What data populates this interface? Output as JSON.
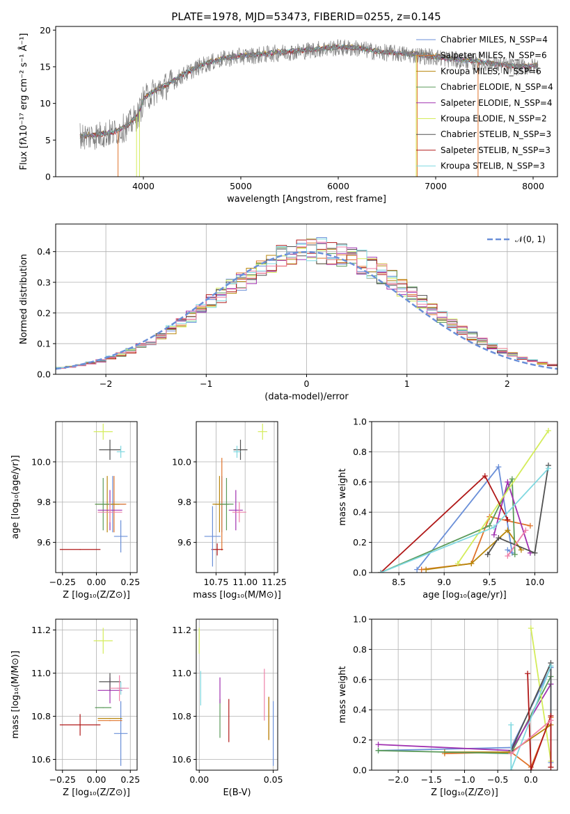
{
  "title": "PLATE=1978, MJD=53473, FIBERID=0255, z=0.145",
  "colors": {
    "Chabrier MILES": "#6a8fd8",
    "Salpeter MILES": "#e0732a",
    "Kroupa MILES": "#b8860b",
    "Chabrier ELODIE": "#5a9a5a",
    "Salpeter ELODIE": "#a030b0",
    "Kroupa ELODIE": "#d4ec5a",
    "Chabrier STELIB": "#505050",
    "Salpeter STELIB": "#b01818",
    "Kroupa STELIB": "#7fd8e0",
    "Pink": "#ee80a8",
    "Gray": "#7f7f7f"
  },
  "chart_data": [
    {
      "type": "line",
      "xlabel": "wavelength [Angstrom, rest frame]",
      "ylabel": "Flux [fλ10⁻¹⁷ erg cm⁻² s⁻¹ Å⁻¹]",
      "xlim": [
        3100,
        8250
      ],
      "ylim": [
        0,
        20.5
      ],
      "xticks": [
        "4000",
        "5000",
        "6000",
        "7000",
        "8000"
      ],
      "yticks": [
        "0",
        "5",
        "10",
        "15",
        "20"
      ],
      "grid": false,
      "legend_position": "top-right",
      "legend": [
        "Chabrier MILES, N_SSP=4",
        "Salpeter MILES, N_SSP=6",
        "Kroupa MILES, N_SSP=6",
        "Chabrier ELODIE, N_SSP=4",
        "Salpeter ELODIE, N_SSP=4",
        "Kroupa ELODIE, N_SSP=2",
        "Chabrier STELIB, N_SSP=3",
        "Salpeter STELIB, N_SSP=3",
        "Kroupa STELIB, N_SSP=3"
      ],
      "continuum": {
        "x": [
          3350,
          3500,
          3700,
          3850,
          3950,
          4000,
          4100,
          4250,
          4400,
          4600,
          4800,
          5000,
          5200,
          5400,
          5600,
          5800,
          6000,
          6200,
          6400,
          6600,
          6800,
          7000,
          7200,
          7400,
          7600,
          7800,
          8000
        ],
        "y": [
          5.5,
          5.6,
          6.0,
          7.0,
          8.5,
          10.5,
          11.5,
          12.5,
          13.8,
          15.2,
          16.0,
          16.4,
          16.6,
          16.9,
          17.1,
          17.4,
          17.6,
          17.5,
          17.0,
          16.8,
          16.6,
          16.3,
          15.9,
          15.7,
          15.3,
          15.0,
          15.0
        ]
      },
      "dropouts": [
        {
          "x": 3930,
          "color": "Kroupa ELODIE"
        },
        {
          "x": 3960,
          "color": "Kroupa ELODIE"
        },
        {
          "x": 6800,
          "color": "Kroupa ELODIE"
        },
        {
          "x": 6810,
          "color": "Salpeter MILES"
        },
        {
          "x": 7435,
          "color": "Salpeter MILES"
        },
        {
          "x": 3740,
          "color": "Salpeter MILES"
        }
      ]
    },
    {
      "type": "line",
      "xlabel": "(data-model)/error",
      "ylabel": "Normed distribution",
      "xlim": [
        -2.5,
        2.5
      ],
      "ylim": [
        0,
        0.49
      ],
      "xticks": [
        "−2",
        "−1",
        "0",
        "1",
        "2"
      ],
      "yticks": [
        "0.0",
        "0.1",
        "0.2",
        "0.3",
        "0.4"
      ],
      "grid": true,
      "legend_position": "top-right",
      "legend": [
        "𝒩(0, 1)"
      ],
      "hist_bins": {
        "start": -2.5,
        "width": 0.1,
        "count": 50
      }
    },
    {
      "type": "scatter",
      "xlabel": "Z [log₁₀(Z/Z⊙)]",
      "ylabel": "age  [log₁₀(age/yr)]",
      "xlim": [
        -0.3,
        0.3
      ],
      "ylim": [
        9.45,
        10.2
      ],
      "xticks": [
        "−0.25",
        "0.00",
        "0.25"
      ],
      "yticks": [
        "9.6",
        "9.8",
        "10.0"
      ],
      "grid": true,
      "points": [
        {
          "x": 0.12,
          "y": 9.79,
          "ex": 0.09,
          "ey": 0.14,
          "c": "Chabrier MILES"
        },
        {
          "x": 0.13,
          "y": 9.79,
          "ex": 0.09,
          "ey": 0.14,
          "c": "Salpeter MILES"
        },
        {
          "x": 0.08,
          "y": 9.79,
          "ex": 0.09,
          "ey": 0.14,
          "c": "Kroupa MILES"
        },
        {
          "x": 0.05,
          "y": 9.79,
          "ex": 0.06,
          "ey": 0.13,
          "c": "Chabrier ELODIE"
        },
        {
          "x": 0.1,
          "y": 9.76,
          "ex": 0.09,
          "ey": 0.1,
          "c": "Salpeter ELODIE"
        },
        {
          "x": 0.05,
          "y": 10.15,
          "ex": 0.07,
          "ey": 0.04,
          "c": "Kroupa ELODIE"
        },
        {
          "x": 0.1,
          "y": 10.06,
          "ex": 0.08,
          "ey": 0.05,
          "c": "Chabrier STELIB"
        },
        {
          "x": -0.12,
          "y": 9.565,
          "ex": 0.15,
          "ey": 0.0,
          "c": "Salpeter STELIB"
        },
        {
          "x": 0.18,
          "y": 10.05,
          "ex": 0.03,
          "ey": 0.03,
          "c": "Kroupa STELIB"
        },
        {
          "x": 0.18,
          "y": 9.63,
          "ex": 0.05,
          "ey": 0.08,
          "c": "Chabrier MILES"
        },
        {
          "x": 0.1,
          "y": 9.75,
          "ex": 0.09,
          "ey": 0.05,
          "c": "Pink"
        }
      ]
    },
    {
      "type": "scatter",
      "xlabel": "mass [log₁₀(M/M⊙)]",
      "ylabel": "",
      "xlim": [
        10.58,
        11.28
      ],
      "ylim": [
        9.45,
        10.2
      ],
      "xticks": [
        "10.75",
        "11.00",
        "11.25"
      ],
      "yticks": [
        "9.6",
        "9.8",
        "10.0"
      ],
      "grid": true,
      "points": [
        {
          "x": 10.8,
          "y": 9.79,
          "ex": 0.06,
          "ey": 0.14,
          "c": "Chabrier MILES"
        },
        {
          "x": 10.8,
          "y": 9.79,
          "ex": 0.06,
          "ey": 0.23,
          "c": "Salpeter MILES"
        },
        {
          "x": 10.78,
          "y": 9.79,
          "ex": 0.06,
          "ey": 0.14,
          "c": "Kroupa MILES"
        },
        {
          "x": 10.84,
          "y": 9.79,
          "ex": 0.06,
          "ey": 0.13,
          "c": "Chabrier ELODIE"
        },
        {
          "x": 10.92,
          "y": 9.76,
          "ex": 0.06,
          "ey": 0.1,
          "c": "Salpeter ELODIE"
        },
        {
          "x": 11.15,
          "y": 10.15,
          "ex": 0.04,
          "ey": 0.04,
          "c": "Kroupa ELODIE"
        },
        {
          "x": 10.96,
          "y": 10.06,
          "ex": 0.06,
          "ey": 0.05,
          "c": "Chabrier STELIB"
        },
        {
          "x": 10.76,
          "y": 9.565,
          "ex": 0.05,
          "ey": 0.03,
          "c": "Salpeter STELIB"
        },
        {
          "x": 10.93,
          "y": 10.05,
          "ex": 0.03,
          "ey": 0.03,
          "c": "Kroupa STELIB"
        },
        {
          "x": 10.72,
          "y": 9.63,
          "ex": 0.07,
          "ey": 0.15,
          "c": "Chabrier MILES"
        },
        {
          "x": 10.95,
          "y": 9.75,
          "ex": 0.06,
          "ey": 0.05,
          "c": "Pink"
        }
      ]
    },
    {
      "type": "line",
      "xlabel": "age  [log₁₀(age/yr)]",
      "ylabel": "mass weight",
      "xlim": [
        8.2,
        10.25
      ],
      "ylim": [
        0,
        1.0
      ],
      "xticks": [
        "8.5",
        "9.0",
        "9.5",
        "10.0"
      ],
      "yticks": [
        "0.0",
        "0.2",
        "0.4",
        "0.6",
        "0.8",
        "1.0"
      ],
      "grid": true,
      "series": [
        {
          "c": "Chabrier MILES",
          "x": [
            8.7,
            9.6,
            9.75,
            9.7
          ],
          "y": [
            0.02,
            0.7,
            0.13,
            0.15
          ]
        },
        {
          "c": "Salpeter MILES",
          "x": [
            8.75,
            9.3,
            9.5,
            9.95
          ],
          "y": [
            0.02,
            0.06,
            0.37,
            0.31
          ]
        },
        {
          "c": "Kroupa MILES",
          "x": [
            8.8,
            9.3,
            9.7,
            9.85
          ],
          "y": [
            0.02,
            0.06,
            0.28,
            0.15
          ]
        },
        {
          "c": "Chabrier ELODIE",
          "x": [
            8.3,
            9.5,
            9.75,
            9.78
          ],
          "y": [
            0.0,
            0.31,
            0.62,
            0.12
          ]
        },
        {
          "c": "Salpeter ELODIE",
          "x": [
            9.55,
            9.7,
            9.95
          ],
          "y": [
            0.25,
            0.6,
            0.13
          ]
        },
        {
          "c": "Kroupa ELODIE",
          "x": [
            9.15,
            10.15
          ],
          "y": [
            0.06,
            0.94
          ]
        },
        {
          "c": "Chabrier STELIB",
          "x": [
            9.48,
            9.6,
            10.0,
            10.15
          ],
          "y": [
            0.12,
            0.23,
            0.13,
            0.71
          ]
        },
        {
          "c": "Salpeter STELIB",
          "x": [
            8.3,
            9.45,
            9.7
          ],
          "y": [
            0.0,
            0.64,
            0.35
          ]
        },
        {
          "c": "Kroupa STELIB",
          "x": [
            8.3,
            9.55,
            10.15
          ],
          "y": [
            0.0,
            0.3,
            0.69
          ]
        },
        {
          "c": "Pink",
          "x": [
            9.7,
            9.9
          ],
          "y": [
            0.11,
            0.28
          ]
        }
      ]
    },
    {
      "type": "scatter",
      "xlabel": "Z [log₁₀(Z/Z⊙)]",
      "ylabel": "mass [log₁₀(M/M⊙)]",
      "xlim": [
        -0.3,
        0.3
      ],
      "ylim": [
        10.55,
        11.25
      ],
      "xticks": [
        "−0.25",
        "0.00",
        "0.25"
      ],
      "yticks": [
        "10.6",
        "10.8",
        "11.0",
        "11.2"
      ],
      "grid": true,
      "points": [
        {
          "x": 0.18,
          "y": 10.72,
          "ex": 0.05,
          "ey": 0.15,
          "c": "Chabrier MILES"
        },
        {
          "x": 0.1,
          "y": 10.78,
          "ex": 0.09,
          "ey": 0.0,
          "c": "Salpeter MILES"
        },
        {
          "x": 0.1,
          "y": 10.79,
          "ex": 0.09,
          "ey": 0.0,
          "c": "Kroupa MILES"
        },
        {
          "x": 0.05,
          "y": 10.84,
          "ex": 0.06,
          "ey": 0.0,
          "c": "Chabrier ELODIE"
        },
        {
          "x": 0.1,
          "y": 10.92,
          "ex": 0.09,
          "ey": 0.06,
          "c": "Salpeter ELODIE"
        },
        {
          "x": 0.05,
          "y": 11.15,
          "ex": 0.07,
          "ey": 0.06,
          "c": "Kroupa ELODIE"
        },
        {
          "x": 0.1,
          "y": 10.96,
          "ex": 0.08,
          "ey": 0.04,
          "c": "Chabrier STELIB"
        },
        {
          "x": -0.12,
          "y": 10.76,
          "ex": 0.15,
          "ey": 0.05,
          "c": "Salpeter STELIB"
        },
        {
          "x": 0.18,
          "y": 10.93,
          "ex": 0.03,
          "ey": 0.03,
          "c": "Kroupa STELIB"
        },
        {
          "x": 0.17,
          "y": 10.93,
          "ex": 0.07,
          "ey": 0.06,
          "c": "Pink"
        }
      ]
    },
    {
      "type": "scatter",
      "xlabel": "E(B-V)",
      "ylabel": "",
      "xlim": [
        -0.002,
        0.053
      ],
      "ylim": [
        10.55,
        11.25
      ],
      "xticks": [
        "0.00",
        "0.05"
      ],
      "yticks": [
        "10.6",
        "10.8",
        "11.0",
        "11.2"
      ],
      "grid": true,
      "points": [
        {
          "x": 0.05,
          "y": 10.72,
          "ex": 0,
          "ey": 0.15,
          "c": "Chabrier MILES"
        },
        {
          "x": 0.047,
          "y": 10.79,
          "ex": 0,
          "ey": 0.1,
          "c": "Salpeter MILES"
        },
        {
          "x": 0.047,
          "y": 10.79,
          "ex": 0,
          "ey": 0.1,
          "c": "Kroupa MILES"
        },
        {
          "x": 0.014,
          "y": 10.79,
          "ex": 0,
          "ey": 0.09,
          "c": "Chabrier ELODIE"
        },
        {
          "x": 0.014,
          "y": 10.92,
          "ex": 0,
          "ey": 0.06,
          "c": "Salpeter ELODIE"
        },
        {
          "x": 0.0,
          "y": 11.15,
          "ex": 0,
          "ey": 0.06,
          "c": "Kroupa ELODIE"
        },
        {
          "x": 0.001,
          "y": 10.93,
          "ex": 0,
          "ey": 0.08,
          "c": "Kroupa STELIB"
        },
        {
          "x": 0.02,
          "y": 10.78,
          "ex": 0,
          "ey": 0.1,
          "c": "Salpeter STELIB"
        },
        {
          "x": 0.044,
          "y": 10.9,
          "ex": 0,
          "ey": 0.12,
          "c": "Pink"
        }
      ]
    },
    {
      "type": "line",
      "xlabel": "Z [log₁₀(Z/Z⊙)]",
      "ylabel": "mass weight",
      "xlim": [
        -2.4,
        0.4
      ],
      "ylim": [
        0,
        1.0
      ],
      "xticks": [
        "−2.0",
        "−1.5",
        "−1.0",
        "−0.5",
        "0.0"
      ],
      "yticks": [
        "0.0",
        "0.2",
        "0.4",
        "0.6",
        "0.8",
        "1.0"
      ],
      "grid": true,
      "series": [
        {
          "c": "Chabrier MILES",
          "x": [
            -2.3,
            -0.3,
            0.3,
            0.3
          ],
          "y": [
            0.13,
            0.15,
            0.68,
            0.05
          ]
        },
        {
          "c": "Salpeter MILES",
          "x": [
            -1.3,
            -0.3,
            0.0,
            0.3
          ],
          "y": [
            0.11,
            0.12,
            0.02,
            0.35
          ]
        },
        {
          "c": "Kroupa MILES",
          "x": [
            -1.3,
            -0.3,
            0.3
          ],
          "y": [
            0.12,
            0.12,
            0.3
          ]
        },
        {
          "c": "Chabrier ELODIE",
          "x": [
            -2.3,
            -0.3,
            0.3
          ],
          "y": [
            0.13,
            0.11,
            0.62
          ]
        },
        {
          "c": "Salpeter ELODIE",
          "x": [
            -2.3,
            -0.3,
            0.3
          ],
          "y": [
            0.17,
            0.13,
            0.57
          ]
        },
        {
          "c": "Kroupa ELODIE",
          "x": [
            0.0,
            0.3
          ],
          "y": [
            0.94,
            0.06
          ]
        },
        {
          "c": "Chabrier STELIB",
          "x": [
            -0.3,
            0.3,
            0.3
          ],
          "y": [
            0.13,
            0.71,
            0.02
          ]
        },
        {
          "c": "Salpeter STELIB",
          "x": [
            -0.05,
            0.0,
            0.3,
            0.3
          ],
          "y": [
            0.64,
            0.0,
            0.36,
            0.02
          ]
        },
        {
          "c": "Kroupa STELIB",
          "x": [
            -0.3,
            -0.3,
            0.3
          ],
          "y": [
            0.3,
            0.0,
            0.69
          ]
        },
        {
          "c": "Pink",
          "x": [
            -0.3,
            0.3
          ],
          "y": [
            0.11,
            0.33
          ]
        }
      ]
    }
  ]
}
